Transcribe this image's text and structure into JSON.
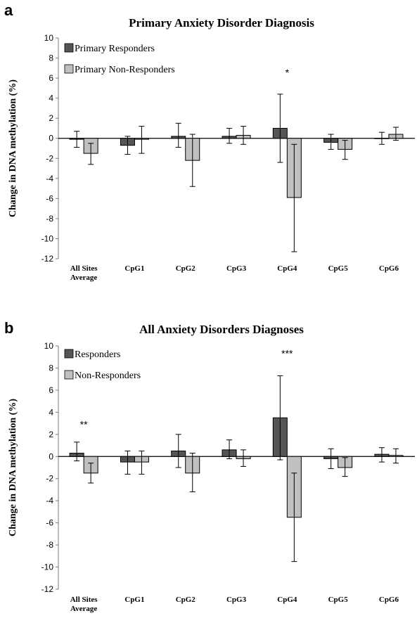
{
  "chart_data": [
    {
      "panel": "a",
      "type": "bar",
      "title": "Primary  Anxiety Disorder Diagnosis",
      "ylabel": "Change in DNA methylation (%)",
      "xlabel": "",
      "ylim": [
        -12,
        10
      ],
      "yticks": [
        10,
        8,
        6,
        4,
        2,
        0,
        -2,
        -4,
        -6,
        -8,
        -10,
        -12
      ],
      "categories": [
        [
          "All Sites",
          "Average"
        ],
        [
          "CpG1"
        ],
        [
          "CpG2"
        ],
        [
          "CpG3"
        ],
        [
          "CpG4"
        ],
        [
          "CpG5"
        ],
        [
          "CpG6"
        ]
      ],
      "legend_position": "top-left",
      "grid": false,
      "series": [
        {
          "name": "Primary Responders",
          "color": "#555555",
          "values": [
            -0.1,
            -0.7,
            0.2,
            0.2,
            1.0,
            -0.4,
            0.0
          ],
          "err_low": [
            -0.9,
            -1.6,
            -0.9,
            -0.5,
            -2.4,
            -1.1,
            -0.6
          ],
          "err_high": [
            0.7,
            0.2,
            1.5,
            1.0,
            4.4,
            0.4,
            0.6
          ]
        },
        {
          "name": "Primary Non-Responders",
          "color": "#c0c0c0",
          "values": [
            -1.5,
            -0.1,
            -2.2,
            0.3,
            -5.9,
            -1.1,
            0.4
          ],
          "err_low": [
            -2.6,
            -1.5,
            -4.8,
            -0.6,
            -11.3,
            -2.1,
            -0.2
          ],
          "err_high": [
            -0.5,
            1.2,
            0.4,
            1.2,
            -0.6,
            -0.2,
            1.1
          ]
        }
      ],
      "annotations": [
        {
          "category": 4,
          "text": "*",
          "y": 6.2
        }
      ]
    },
    {
      "panel": "b",
      "type": "bar",
      "title": "All Anxiety Disorders Diagnoses",
      "ylabel": "Change in DNA methylation (%)",
      "xlabel": "",
      "ylim": [
        -12,
        10
      ],
      "yticks": [
        10,
        8,
        6,
        4,
        2,
        0,
        -2,
        -4,
        -6,
        -8,
        -10,
        -12
      ],
      "categories": [
        [
          "All Sites",
          "Average"
        ],
        [
          "CpG1"
        ],
        [
          "CpG2"
        ],
        [
          "CpG3"
        ],
        [
          "CpG4"
        ],
        [
          "CpG5"
        ],
        [
          "CpG6"
        ]
      ],
      "legend_position": "top-left",
      "grid": false,
      "series": [
        {
          "name": "Responders",
          "color": "#555555",
          "values": [
            0.3,
            -0.5,
            0.5,
            0.6,
            3.5,
            -0.2,
            0.2
          ],
          "err_low": [
            -0.4,
            -1.6,
            -1.0,
            -0.2,
            -0.3,
            -1.1,
            -0.5
          ],
          "err_high": [
            1.3,
            0.5,
            2.0,
            1.5,
            7.3,
            0.7,
            0.8
          ]
        },
        {
          "name": "Non-Responders",
          "color": "#c0c0c0",
          "values": [
            -1.5,
            -0.5,
            -1.5,
            -0.2,
            -5.5,
            -1.0,
            0.1
          ],
          "err_low": [
            -2.4,
            -1.6,
            -3.2,
            -0.9,
            -9.5,
            -1.8,
            -0.6
          ],
          "err_high": [
            -0.6,
            0.5,
            0.3,
            0.6,
            -1.5,
            -0.1,
            0.7
          ]
        }
      ],
      "annotations": [
        {
          "category": 0,
          "text": "**",
          "y": 2.6
        },
        {
          "category": 4,
          "text": "***",
          "y": 9.0
        }
      ]
    }
  ]
}
